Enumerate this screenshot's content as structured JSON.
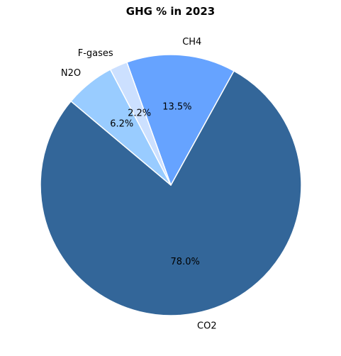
{
  "chart_data": {
    "type": "pie",
    "title": "GHG % in 2023",
    "slices": [
      {
        "label": "CO2",
        "value": 78.0,
        "pct_text": "78.0%",
        "color": "#336699"
      },
      {
        "label": "CH4",
        "value": 13.5,
        "pct_text": "13.5%",
        "color": "#66a3ff"
      },
      {
        "label": "F-gases",
        "value": 2.2,
        "pct_text": "2.2%",
        "color": "#cce0ff"
      },
      {
        "label": "N2O",
        "value": 6.2,
        "pct_text": "6.2%",
        "color": "#99ccff"
      }
    ],
    "start_angle_deg": 140,
    "direction": "counterclockwise",
    "edge_color": "#ffffff"
  }
}
